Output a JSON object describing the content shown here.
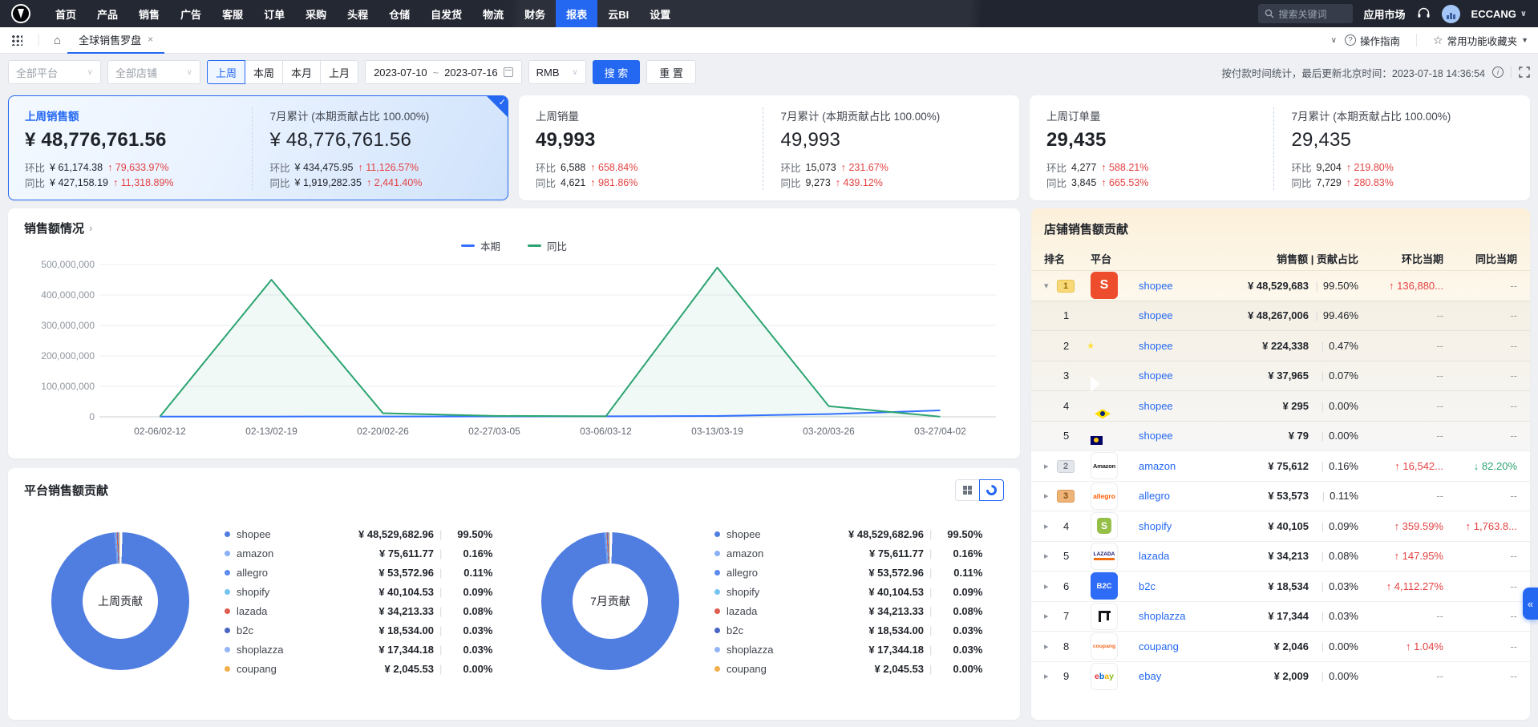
{
  "topnav": {
    "menu": [
      "首页",
      "产品",
      "销售",
      "广告",
      "客服",
      "订单",
      "采购",
      "头程",
      "仓储",
      "自发货",
      "物流",
      "财务",
      "报表",
      "云BI",
      "设置"
    ],
    "active_item": "报表",
    "search_placeholder": "搜索关键词",
    "app_market": "应用市场",
    "account_name": "ECCANG"
  },
  "tabbar": {
    "tab_label": "全球销售罗盘",
    "close_glyph": "×",
    "guide_label": "操作指南",
    "favorites_label": "常用功能收藏夹"
  },
  "filterbar": {
    "platform_select": "全部平台",
    "store_select": "全部店铺",
    "periods": [
      "上周",
      "本周",
      "本月",
      "上月"
    ],
    "active_period": "上周",
    "date_start": "2023-07-10",
    "date_sep": "~",
    "date_end": "2023-07-16",
    "currency": "RMB",
    "search_btn": "搜 索",
    "reset_btn": "重 置",
    "update_note": "按付款时间统计，最后更新北京时间：2023-07-18 14:36:54"
  },
  "kpis": [
    {
      "selected": true,
      "left": {
        "title": "上周销售额",
        "value": "¥ 48,776,761.56",
        "rows": [
          {
            "label": "环比",
            "value": "¥ 61,174.38",
            "dir": "up",
            "pct": "79,633.97%"
          },
          {
            "label": "同比",
            "value": "¥ 427,158.19",
            "dir": "up",
            "pct": "11,318.89%"
          }
        ]
      },
      "right": {
        "title": "7月累计 (本期贡献占比 100.00%)",
        "value": "¥ 48,776,761.56",
        "rows": [
          {
            "label": "环比",
            "value": "¥ 434,475.95",
            "dir": "up",
            "pct": "11,126.57%"
          },
          {
            "label": "同比",
            "value": "¥ 1,919,282.35",
            "dir": "up",
            "pct": "2,441.40%"
          }
        ]
      }
    },
    {
      "selected": false,
      "left": {
        "title": "上周销量",
        "value": "49,993",
        "rows": [
          {
            "label": "环比",
            "value": "6,588",
            "dir": "up",
            "pct": "658.84%"
          },
          {
            "label": "同比",
            "value": "4,621",
            "dir": "up",
            "pct": "981.86%"
          }
        ]
      },
      "right": {
        "title": "7月累计 (本期贡献占比 100.00%)",
        "value": "49,993",
        "rows": [
          {
            "label": "环比",
            "value": "15,073",
            "dir": "up",
            "pct": "231.67%"
          },
          {
            "label": "同比",
            "value": "9,273",
            "dir": "up",
            "pct": "439.12%"
          }
        ]
      }
    },
    {
      "selected": false,
      "left": {
        "title": "上周订单量",
        "value": "29,435",
        "rows": [
          {
            "label": "环比",
            "value": "4,277",
            "dir": "up",
            "pct": "588.21%"
          },
          {
            "label": "同比",
            "value": "3,845",
            "dir": "up",
            "pct": "665.53%"
          }
        ]
      },
      "right": {
        "title": "7月累计 (本期贡献占比 100.00%)",
        "value": "29,435",
        "rows": [
          {
            "label": "环比",
            "value": "9,204",
            "dir": "up",
            "pct": "219.80%"
          },
          {
            "label": "同比",
            "value": "7,729",
            "dir": "up",
            "pct": "280.83%"
          }
        ]
      }
    }
  ],
  "sales_chart": {
    "title": "销售额情况",
    "title_arrow": "›",
    "chart_data": {
      "type": "line",
      "x": [
        "02-06/02-12",
        "02-13/02-19",
        "02-20/02-26",
        "02-27/03-05",
        "03-06/03-12",
        "03-13/03-19",
        "03-20/03-26",
        "03-27/04-02"
      ],
      "series": [
        {
          "name": "本期",
          "color": "#3370ff",
          "values": [
            500000,
            800000,
            1000000,
            1200000,
            1500000,
            2500000,
            9000000,
            21000000
          ]
        },
        {
          "name": "同比",
          "color": "#2ba471",
          "values": [
            1000000,
            450000000,
            12000000,
            3000000,
            1500000,
            490000000,
            35000000,
            500000
          ]
        }
      ],
      "ylim": [
        0,
        500000000
      ],
      "ytick_labels": [
        "0",
        "100,000,000",
        "200,000,000",
        "300,000,000",
        "400,000,000",
        "500,000,000"
      ],
      "grid": true,
      "legend_position": "top-center"
    }
  },
  "platform_contrib": {
    "title": "平台销售额贡献",
    "donuts": [
      {
        "center_label": "上周贡献"
      },
      {
        "center_label": "7月贡献"
      }
    ],
    "items": [
      {
        "name": "shopee",
        "value": "¥ 48,529,682.96",
        "pct": "99.50%",
        "color": "#4f7de0"
      },
      {
        "name": "amazon",
        "value": "¥ 75,611.77",
        "pct": "0.16%",
        "color": "#8ab0f8"
      },
      {
        "name": "allegro",
        "value": "¥ 53,572.96",
        "pct": "0.11%",
        "color": "#5d8af0"
      },
      {
        "name": "shopify",
        "value": "¥ 40,104.53",
        "pct": "0.09%",
        "color": "#74c3f0"
      },
      {
        "name": "lazada",
        "value": "¥ 34,213.33",
        "pct": "0.08%",
        "color": "#e05c51"
      },
      {
        "name": "b2c",
        "value": "¥ 18,534.00",
        "pct": "0.03%",
        "color": "#4a64c4"
      },
      {
        "name": "shoplazza",
        "value": "¥ 17,344.18",
        "pct": "0.03%",
        "color": "#93b5f5"
      },
      {
        "name": "coupang",
        "value": "¥ 2,045.53",
        "pct": "0.00%",
        "color": "#f2b04d"
      }
    ],
    "sep_glyph": "|"
  },
  "store_table": {
    "title": "店铺销售额贡献",
    "headers": {
      "rank": "排名",
      "platform": "平台",
      "sales_contrib": "销售额 | 贡献占比",
      "mom": "环比当期",
      "yoy": "同比当期"
    },
    "rows": [
      {
        "level": 0,
        "expand": "open",
        "rank_type": "medal-1",
        "rank": "1",
        "logo": "shopee",
        "name": "shopee",
        "value": "¥ 48,529,683",
        "pct": "99.50%",
        "mom": "136,880...",
        "mom_dir": "up",
        "yoy": "--",
        "yoy_dir": "none"
      },
      {
        "level": 1,
        "rank": "1",
        "flag": "id",
        "name": "shopee",
        "value": "¥ 48,267,006",
        "pct": "99.46%",
        "mom": "--",
        "mom_dir": "none",
        "yoy": "--",
        "yoy_dir": "none"
      },
      {
        "level": 1,
        "rank": "2",
        "flag": "vn",
        "name": "shopee",
        "value": "¥ 224,338",
        "pct": "0.47%",
        "mom": "--",
        "mom_dir": "none",
        "yoy": "--",
        "yoy_dir": "none"
      },
      {
        "level": 1,
        "rank": "3",
        "flag": "ph",
        "name": "shopee",
        "value": "¥ 37,965",
        "pct": "0.07%",
        "mom": "--",
        "mom_dir": "none",
        "yoy": "--",
        "yoy_dir": "none"
      },
      {
        "level": 1,
        "rank": "4",
        "flag": "br",
        "name": "shopee",
        "value": "¥ 295",
        "pct": "0.00%",
        "mom": "--",
        "mom_dir": "none",
        "yoy": "--",
        "yoy_dir": "none"
      },
      {
        "level": 1,
        "rank": "5",
        "flag": "my",
        "name": "shopee",
        "value": "¥ 79",
        "pct": "0.00%",
        "mom": "--",
        "mom_dir": "none",
        "yoy": "--",
        "yoy_dir": "none"
      },
      {
        "level": 0,
        "expand": "closed",
        "rank_type": "medal-2",
        "rank": "2",
        "logo": "amazon",
        "name": "amazon",
        "value": "¥ 75,612",
        "pct": "0.16%",
        "mom": "16,542...",
        "mom_dir": "up",
        "yoy": "82.20%",
        "yoy_dir": "down"
      },
      {
        "level": 0,
        "expand": "closed",
        "rank_type": "medal-3",
        "rank": "3",
        "logo": "allegro",
        "name": "allegro",
        "value": "¥ 53,573",
        "pct": "0.11%",
        "mom": "--",
        "mom_dir": "none",
        "yoy": "--",
        "yoy_dir": "none"
      },
      {
        "level": 0,
        "expand": "closed",
        "rank_type": "num",
        "rank": "4",
        "logo": "shopify",
        "name": "shopify",
        "value": "¥ 40,105",
        "pct": "0.09%",
        "mom": "359.59%",
        "mom_dir": "up",
        "yoy": "1,763.8...",
        "yoy_dir": "up"
      },
      {
        "level": 0,
        "expand": "closed",
        "rank_type": "num",
        "rank": "5",
        "logo": "lazada",
        "name": "lazada",
        "value": "¥ 34,213",
        "pct": "0.08%",
        "mom": "147.95%",
        "mom_dir": "up",
        "yoy": "--",
        "yoy_dir": "none"
      },
      {
        "level": 0,
        "expand": "closed",
        "rank_type": "num",
        "rank": "6",
        "logo": "b2c",
        "name": "b2c",
        "value": "¥ 18,534",
        "pct": "0.03%",
        "mom": "4,112.27%",
        "mom_dir": "up",
        "yoy": "--",
        "yoy_dir": "none"
      },
      {
        "level": 0,
        "expand": "closed",
        "rank_type": "num",
        "rank": "7",
        "logo": "shoplazza",
        "name": "shoplazza",
        "value": "¥ 17,344",
        "pct": "0.03%",
        "mom": "--",
        "mom_dir": "none",
        "yoy": "--",
        "yoy_dir": "none"
      },
      {
        "level": 0,
        "expand": "closed",
        "rank_type": "num",
        "rank": "8",
        "logo": "coupang",
        "name": "coupang",
        "value": "¥ 2,046",
        "pct": "0.00%",
        "mom": "1.04%",
        "mom_dir": "up",
        "yoy": "--",
        "yoy_dir": "none"
      },
      {
        "level": 0,
        "expand": "closed",
        "rank_type": "num",
        "rank": "9",
        "logo": "ebay",
        "name": "ebay",
        "value": "¥ 2,009",
        "pct": "0.00%",
        "mom": "--",
        "mom_dir": "none",
        "yoy": "--",
        "yoy_dir": "none"
      }
    ]
  },
  "side_tab_glyph": "«"
}
